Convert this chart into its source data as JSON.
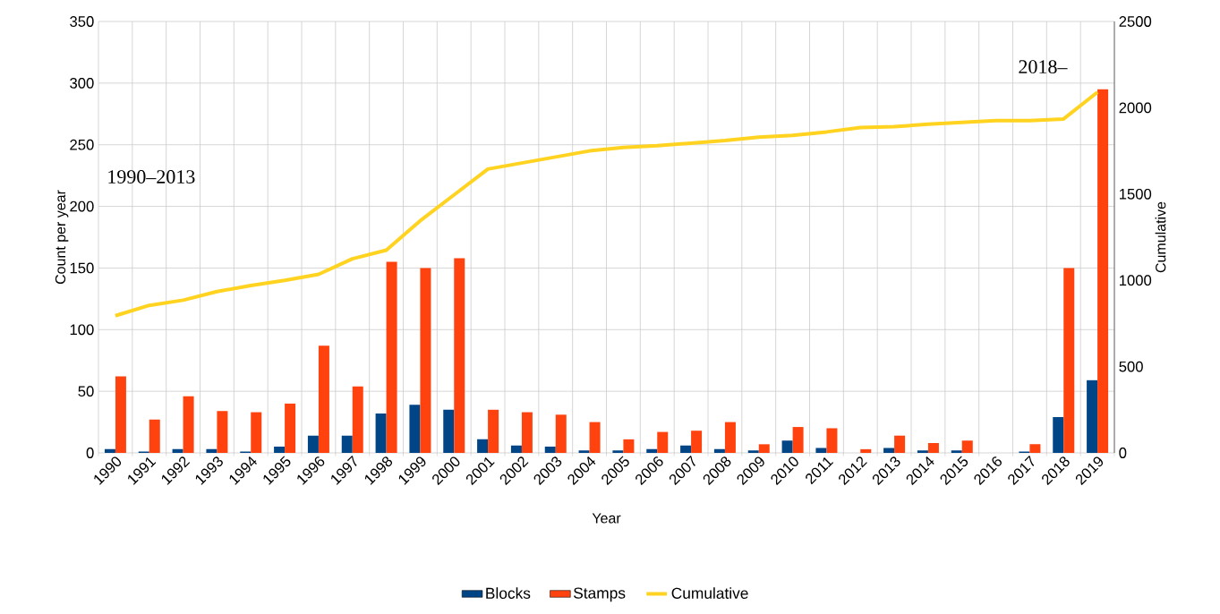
{
  "chart_data": {
    "type": "bar",
    "categories": [
      "1990",
      "1991",
      "1992",
      "1993",
      "1994",
      "1995",
      "1996",
      "1997",
      "1998",
      "1999",
      "2000",
      "2001",
      "2002",
      "2003",
      "2004",
      "2005",
      "2006",
      "2007",
      "2008",
      "2009",
      "2010",
      "2011",
      "2012",
      "2013",
      "2014",
      "2015",
      "2016",
      "2017",
      "2018",
      "2019"
    ],
    "series": [
      {
        "name": "Blocks",
        "color": "#004586",
        "values": [
          3,
          1,
          3,
          3,
          1,
          5,
          14,
          14,
          32,
          39,
          35,
          11,
          6,
          5,
          2,
          2,
          3,
          6,
          3,
          2,
          10,
          4,
          0,
          4,
          2,
          2,
          0,
          1,
          29,
          59
        ]
      },
      {
        "name": "Stamps",
        "color": "#ff420e",
        "values": [
          62,
          27,
          46,
          34,
          33,
          40,
          87,
          54,
          155,
          150,
          158,
          35,
          33,
          31,
          25,
          11,
          17,
          18,
          25,
          7,
          21,
          20,
          3,
          14,
          8,
          10,
          0,
          7,
          150,
          295
        ]
      },
      {
        "name": "Cumulative",
        "type": "line",
        "axis": "y2",
        "color": "#ffd320",
        "values": [
          795,
          855,
          885,
          935,
          970,
          1000,
          1035,
          1125,
          1175,
          1345,
          1495,
          1645,
          1680,
          1715,
          1750,
          1770,
          1780,
          1795,
          1810,
          1830,
          1840,
          1860,
          1885,
          1890,
          1905,
          1915,
          1925,
          1925,
          1935,
          2090
        ]
      }
    ],
    "xlabel": "Year",
    "ylabel": "Count per year",
    "y2label": "Cumulative",
    "ylim": [
      0,
      350
    ],
    "yticks": [
      0,
      50,
      100,
      150,
      200,
      250,
      300,
      350
    ],
    "y2lim": [
      0,
      2500
    ],
    "y2ticks": [
      0,
      500,
      1000,
      1500,
      2000,
      2500
    ],
    "annotations": [
      "1990–2013",
      "2018–"
    ],
    "grid": true,
    "legend": "bottom"
  }
}
